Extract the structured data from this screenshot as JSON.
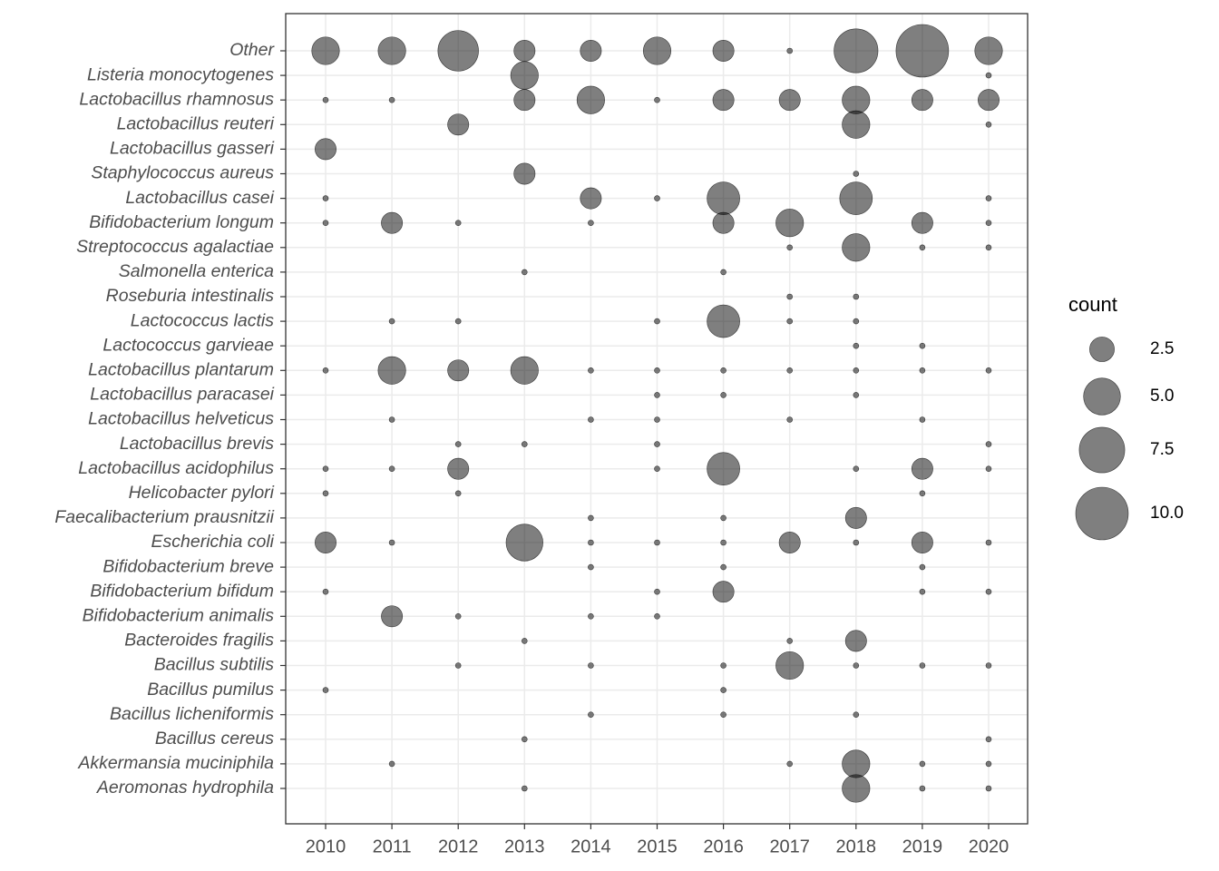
{
  "chart_data": {
    "type": "bubble",
    "x_categories": [
      2010,
      2011,
      2012,
      2013,
      2014,
      2015,
      2016,
      2017,
      2018,
      2019,
      2020
    ],
    "color": "#000000",
    "opacity": 0.5,
    "grid": true,
    "series": [
      {
        "name": "Other",
        "values": [
          3,
          3,
          6,
          2,
          2,
          3,
          2,
          1,
          7,
          10,
          3
        ]
      },
      {
        "name": "Listeria monocytogenes",
        "values": [
          null,
          null,
          null,
          3,
          null,
          null,
          null,
          null,
          null,
          null,
          1
        ]
      },
      {
        "name": "Lactobacillus rhamnosus",
        "values": [
          1,
          1,
          null,
          2,
          3,
          1,
          2,
          2,
          3,
          2,
          2
        ]
      },
      {
        "name": "Lactobacillus reuteri",
        "values": [
          null,
          null,
          2,
          null,
          null,
          null,
          null,
          null,
          3,
          null,
          1
        ]
      },
      {
        "name": "Lactobacillus gasseri",
        "values": [
          2,
          null,
          null,
          null,
          null,
          null,
          null,
          null,
          null,
          null,
          null
        ]
      },
      {
        "name": "Staphylococcus aureus",
        "values": [
          null,
          null,
          null,
          2,
          null,
          null,
          null,
          null,
          1,
          null,
          null
        ]
      },
      {
        "name": "Lactobacillus casei",
        "values": [
          1,
          null,
          null,
          null,
          2,
          1,
          4,
          null,
          4,
          null,
          1
        ]
      },
      {
        "name": "Bifidobacterium longum",
        "values": [
          1,
          2,
          1,
          null,
          1,
          null,
          2,
          3,
          null,
          2,
          1
        ]
      },
      {
        "name": "Streptococcus agalactiae",
        "values": [
          null,
          null,
          null,
          null,
          null,
          null,
          null,
          1,
          3,
          1,
          1
        ]
      },
      {
        "name": "Salmonella enterica",
        "values": [
          null,
          null,
          null,
          1,
          null,
          null,
          1,
          null,
          null,
          null,
          null
        ]
      },
      {
        "name": "Roseburia intestinalis",
        "values": [
          null,
          null,
          null,
          null,
          null,
          null,
          null,
          1,
          1,
          null,
          null
        ]
      },
      {
        "name": "Lactococcus lactis",
        "values": [
          null,
          1,
          1,
          null,
          null,
          1,
          4,
          1,
          1,
          null,
          null
        ]
      },
      {
        "name": "Lactococcus garvieae",
        "values": [
          null,
          null,
          null,
          null,
          null,
          null,
          null,
          null,
          1,
          1,
          null
        ]
      },
      {
        "name": "Lactobacillus plantarum",
        "values": [
          1,
          3,
          2,
          3,
          1,
          1,
          1,
          1,
          1,
          1,
          1
        ]
      },
      {
        "name": "Lactobacillus paracasei",
        "values": [
          null,
          null,
          null,
          null,
          null,
          1,
          1,
          null,
          1,
          null,
          null
        ]
      },
      {
        "name": "Lactobacillus helveticus",
        "values": [
          null,
          1,
          null,
          null,
          1,
          1,
          null,
          1,
          null,
          1,
          null
        ]
      },
      {
        "name": "Lactobacillus brevis",
        "values": [
          null,
          null,
          1,
          1,
          null,
          1,
          null,
          null,
          null,
          null,
          1
        ]
      },
      {
        "name": "Lactobacillus acidophilus",
        "values": [
          1,
          1,
          2,
          null,
          null,
          1,
          4,
          null,
          1,
          2,
          1
        ]
      },
      {
        "name": "Helicobacter pylori",
        "values": [
          1,
          null,
          1,
          null,
          null,
          null,
          null,
          null,
          null,
          1,
          null
        ]
      },
      {
        "name": "Faecalibacterium prausnitzii",
        "values": [
          null,
          null,
          null,
          null,
          1,
          null,
          1,
          null,
          2,
          null,
          null
        ]
      },
      {
        "name": "Escherichia coli",
        "values": [
          2,
          1,
          null,
          5,
          1,
          1,
          1,
          2,
          1,
          2,
          1
        ]
      },
      {
        "name": "Bifidobacterium breve",
        "values": [
          null,
          null,
          null,
          null,
          1,
          null,
          1,
          null,
          null,
          1,
          null
        ]
      },
      {
        "name": "Bifidobacterium bifidum",
        "values": [
          1,
          null,
          null,
          null,
          null,
          1,
          2,
          null,
          null,
          1,
          1
        ]
      },
      {
        "name": "Bifidobacterium animalis",
        "values": [
          null,
          2,
          1,
          null,
          1,
          1,
          null,
          null,
          null,
          null,
          null
        ]
      },
      {
        "name": "Bacteroides fragilis",
        "values": [
          null,
          null,
          null,
          1,
          null,
          null,
          null,
          1,
          2,
          null,
          null
        ]
      },
      {
        "name": "Bacillus subtilis",
        "values": [
          null,
          null,
          1,
          null,
          1,
          null,
          1,
          3,
          1,
          1,
          1
        ]
      },
      {
        "name": "Bacillus pumilus",
        "values": [
          1,
          null,
          null,
          null,
          null,
          null,
          1,
          null,
          null,
          null,
          null
        ]
      },
      {
        "name": "Bacillus licheniformis",
        "values": [
          null,
          null,
          null,
          null,
          1,
          null,
          1,
          null,
          1,
          null,
          null
        ]
      },
      {
        "name": "Bacillus cereus",
        "values": [
          null,
          null,
          null,
          1,
          null,
          null,
          null,
          null,
          null,
          null,
          1
        ]
      },
      {
        "name": "Akkermansia muciniphila",
        "values": [
          null,
          1,
          null,
          null,
          null,
          null,
          null,
          1,
          3,
          1,
          1
        ]
      },
      {
        "name": "Aeromonas hydrophila",
        "values": [
          null,
          null,
          null,
          1,
          null,
          null,
          null,
          null,
          3,
          1,
          1
        ]
      }
    ],
    "size_legend": {
      "title": "count",
      "values": [
        2.5,
        {
          "value": 5,
          "label": "5.0"
        },
        7.5,
        {
          "value": 10,
          "label": "10.0"
        }
      ]
    }
  }
}
